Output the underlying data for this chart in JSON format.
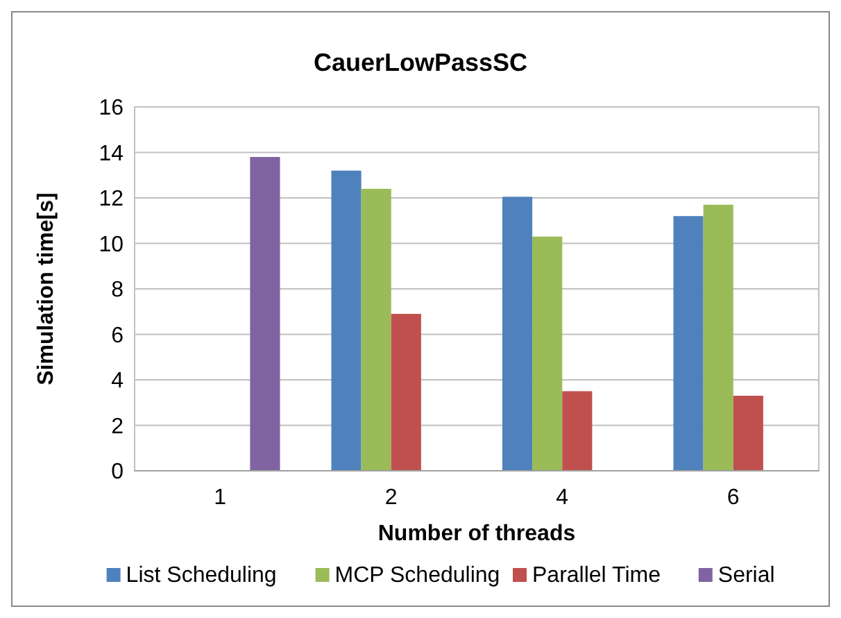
{
  "chart_data": {
    "type": "bar",
    "title": "CauerLowPassSC",
    "xlabel": "Number of threads",
    "ylabel": "Simulation time[s]",
    "categories": [
      "1",
      "2",
      "4",
      "6"
    ],
    "series": [
      {
        "name": "List Scheduling",
        "color": "#4f81bd",
        "values": [
          null,
          13.2,
          12.05,
          11.2
        ]
      },
      {
        "name": "MCP Scheduling",
        "color": "#9bbb59",
        "values": [
          null,
          12.4,
          10.3,
          11.7
        ]
      },
      {
        "name": "Parallel Time",
        "color": "#c0504d",
        "values": [
          null,
          6.9,
          3.5,
          3.3
        ]
      },
      {
        "name": "Serial",
        "color": "#8064a2",
        "values": [
          13.8,
          null,
          null,
          null
        ]
      }
    ],
    "ylim": [
      0,
      16
    ],
    "yticks": [
      0,
      2,
      4,
      6,
      8,
      10,
      12,
      14,
      16
    ],
    "grid": "y",
    "legend": "bottom"
  }
}
